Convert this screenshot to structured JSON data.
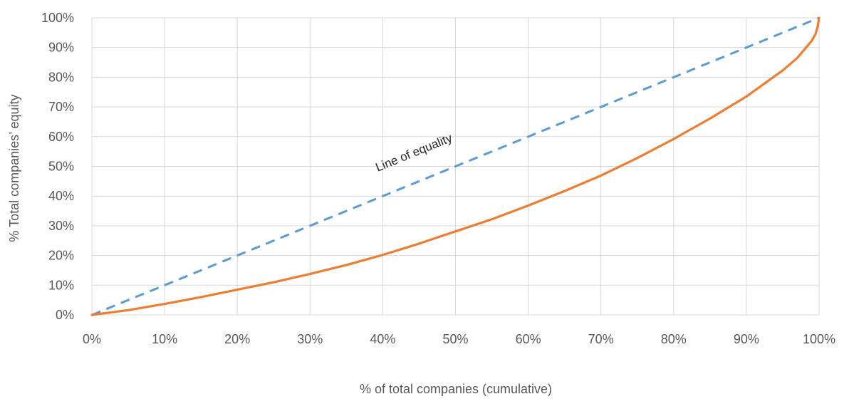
{
  "chart_data": {
    "type": "line",
    "title": "",
    "xlabel": "% of total companies (cumulative)",
    "ylabel": "% Total companies’ equity",
    "xlim": [
      0,
      100
    ],
    "ylim": [
      0,
      100
    ],
    "x_ticks": [
      "0%",
      "10%",
      "20%",
      "30%",
      "40%",
      "50%",
      "60%",
      "70%",
      "80%",
      "90%",
      "100%"
    ],
    "y_ticks": [
      "0%",
      "10%",
      "20%",
      "30%",
      "40%",
      "50%",
      "60%",
      "70%",
      "80%",
      "90%",
      "100%"
    ],
    "grid": true,
    "legend": "none",
    "annotation": "Line of equality",
    "series": [
      {
        "style": "dashed",
        "color": "#5B9BD5",
        "x": [
          0,
          100
        ],
        "y": [
          0,
          100
        ]
      },
      {
        "style": "solid",
        "color": "#ED7D31",
        "x": [
          0,
          5,
          10,
          15,
          20,
          25,
          30,
          35,
          40,
          45,
          50,
          55,
          60,
          65,
          70,
          75,
          80,
          85,
          90,
          95,
          97,
          99,
          99.5,
          99.8,
          100
        ],
        "y": [
          0,
          1.6,
          3.7,
          6.0,
          8.5,
          11.0,
          13.8,
          16.8,
          20.2,
          24.0,
          28.1,
          32.2,
          36.8,
          41.7,
          46.9,
          52.8,
          59.2,
          66.1,
          73.5,
          82.3,
          86.5,
          92.3,
          94.5,
          97.0,
          100
        ]
      }
    ]
  }
}
